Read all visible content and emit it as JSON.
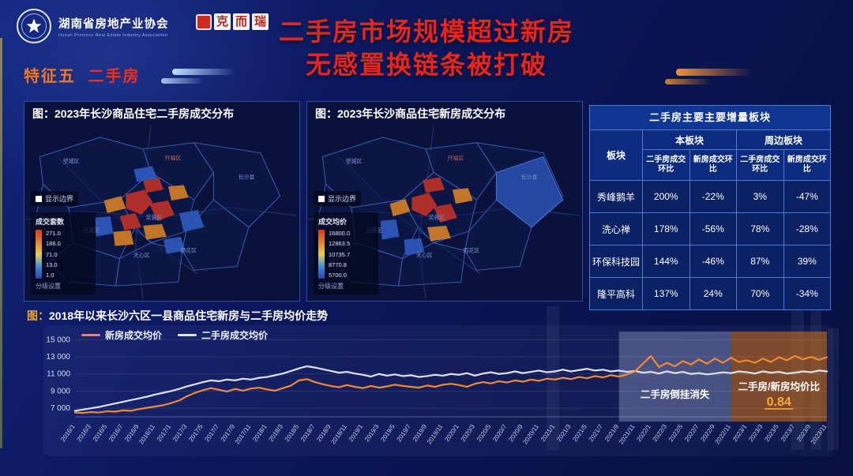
{
  "header": {
    "org_name": "湖南省房地产业协会",
    "org_name_en": "Hunan Province Real Estate Industry Association",
    "cric_chars": [
      "克",
      "而",
      "瑞"
    ],
    "title_line1": "二手房市场规模超过新房",
    "title_line2": "无感置换链条被打破",
    "section_tag_feature": "特征五",
    "section_tag_topic": "二手房"
  },
  "colors": {
    "title_red": "#e8251c",
    "tag_orange": "#f07820",
    "accent_orange": "#f28a33",
    "table_border": "#4f7ad0",
    "ratio_value": "#ffa83a"
  },
  "maps": {
    "left": {
      "title": "图：2023年长沙商品住宅二手房成交分布",
      "layer_toggle": "显示边界",
      "legend": {
        "title": "成交套数",
        "values": [
          "271.0",
          "186.0",
          "71.0",
          "13.0",
          "1.0"
        ],
        "footer": "分级设置"
      }
    },
    "right": {
      "title": "图：2023年长沙商品住宅新房成交分布",
      "layer_toggle": "显示边界",
      "legend": {
        "title": "成交均价",
        "values": [
          "16800.0",
          "12863.5",
          "10735.7",
          "8770.8",
          "5700.0"
        ],
        "footer": "分级设置"
      }
    },
    "place_labels": [
      "望城区",
      "开福区",
      "长沙县",
      "岳麓区",
      "芙蓉区",
      "天心区",
      "雨花区"
    ]
  },
  "table": {
    "title": "二手房主要主要增量板块",
    "col_group_headers": [
      "板块",
      "本板块",
      "周边板块"
    ],
    "sub_headers": [
      "二手房成交环比",
      "新房成交环比",
      "二手房成交环比",
      "新房成交环比"
    ],
    "rows": [
      {
        "name": "秀峰鹅羊",
        "values": [
          "200%",
          "-22%",
          "3%",
          "-47%"
        ]
      },
      {
        "name": "洗心禅",
        "values": [
          "178%",
          "-56%",
          "78%",
          "-28%"
        ]
      },
      {
        "name": "环保科技园",
        "values": [
          "144%",
          "-46%",
          "87%",
          "39%"
        ]
      },
      {
        "name": "隆平高科",
        "values": [
          "137%",
          "24%",
          "70%",
          "-34%"
        ]
      }
    ]
  },
  "chart_data": {
    "type": "line",
    "title_prefix": "图：",
    "title_main": "2018年以来长沙六区一县商品住宅新房与二手房均价走势",
    "ylim": [
      6000,
      15400
    ],
    "yticks": [
      7000,
      9000,
      11000,
      13000,
      15000
    ],
    "legend_position": "top-left",
    "x": [
      "2016/1",
      "2016/2",
      "2016/3",
      "2016/4",
      "2016/5",
      "2016/6",
      "2016/7",
      "2016/8",
      "2016/9",
      "2016/10",
      "2016/11",
      "2016/12",
      "2017/1",
      "2017/2",
      "2017/3",
      "2017/4",
      "2017/5",
      "2017/6",
      "2017/7",
      "2017/8",
      "2017/9",
      "2017/10",
      "2017/11",
      "2017/12",
      "2018/1",
      "2018/2",
      "2018/3",
      "2018/4",
      "2018/5",
      "2018/6",
      "2018/7",
      "2018/8",
      "2018/9",
      "2018/10",
      "2018/11",
      "2018/12",
      "2019/1",
      "2019/2",
      "2019/3",
      "2019/4",
      "2019/5",
      "2019/6",
      "2019/7",
      "2019/8",
      "2019/9",
      "2019/10",
      "2019/11",
      "2019/12",
      "2020/1",
      "2020/2",
      "2020/3",
      "2020/4",
      "2020/5",
      "2020/6",
      "2020/7",
      "2020/8",
      "2020/9",
      "2020/10",
      "2020/11",
      "2020/12",
      "2021/1",
      "2021/2",
      "2021/3",
      "2021/4",
      "2021/5",
      "2021/6",
      "2021/7",
      "2021/8",
      "2021/9",
      "2021/10",
      "2021/11",
      "2021/12",
      "2022/1",
      "2022/2",
      "2022/3",
      "2022/4",
      "2022/5",
      "2022/6",
      "2022/7",
      "2022/8",
      "2022/9",
      "2022/10",
      "2022/11",
      "2022/12",
      "2023/1",
      "2023/2",
      "2023/3",
      "2023/4",
      "2023/5",
      "2023/6",
      "2023/7",
      "2023/8",
      "2023/9",
      "2023/10",
      "2023/11"
    ],
    "series": [
      {
        "name": "新房成交均价",
        "color": "#f28a33",
        "values": [
          6500,
          6450,
          6550,
          6500,
          6650,
          6600,
          6750,
          6700,
          6900,
          7050,
          7200,
          7350,
          7600,
          7900,
          8400,
          8800,
          9100,
          9350,
          9150,
          8950,
          9250,
          9050,
          9300,
          9400,
          9200,
          9050,
          9350,
          9650,
          10250,
          10400,
          10050,
          9800,
          9600,
          9450,
          9700,
          9500,
          9350,
          9600,
          9400,
          9550,
          9750,
          9600,
          9500,
          9400,
          9650,
          9500,
          9750,
          9850,
          9700,
          9500,
          9850,
          10050,
          9900,
          10150,
          10000,
          10250,
          10100,
          10350,
          10200,
          10450,
          10350,
          10550,
          10400,
          10650,
          10500,
          10750,
          10600,
          10850,
          10700,
          10950,
          11300,
          12200,
          13100,
          11800,
          12300,
          11900,
          12500,
          12100,
          12700,
          12200,
          12800,
          12300,
          12900,
          12400,
          12600,
          12300,
          12800,
          12400,
          12950,
          12600,
          13100,
          12700,
          13000,
          12650,
          12950
        ]
      },
      {
        "name": "二手房成交均价",
        "color": "#dfe2ee",
        "values": [
          6700,
          6850,
          7000,
          7150,
          7350,
          7550,
          7750,
          7950,
          8150,
          8350,
          8600,
          8800,
          9000,
          9250,
          9550,
          9800,
          10050,
          10250,
          10150,
          10350,
          10250,
          10450,
          10350,
          10550,
          10650,
          10850,
          11050,
          11350,
          11650,
          11900,
          11750,
          11550,
          11350,
          11150,
          11250,
          11050,
          10900,
          10700,
          11000,
          10800,
          10950,
          10750,
          10850,
          10650,
          10750,
          10900,
          10800,
          11000,
          10900,
          11100,
          10800,
          11050,
          11200,
          11000,
          11100,
          11300,
          11100,
          11250,
          11400,
          11200,
          11300,
          11500,
          11300,
          11450,
          11600,
          11400,
          11500,
          11300,
          11400,
          11250,
          11350,
          11150,
          11250,
          11050,
          11300,
          11100,
          11250,
          11000,
          11100,
          10950,
          11050,
          11200,
          11100,
          11300,
          11200,
          11050,
          11300,
          11150,
          11250,
          11050,
          11150,
          11300,
          11200,
          11400,
          11300
        ]
      }
    ],
    "annotations": [
      {
        "label": "二手房倒挂消失",
        "range": [
          "2021/9",
          "2022/11"
        ],
        "color": "rgba(186,200,232,0.32)"
      },
      {
        "label": "二手房/新房均价比",
        "value": "0.84",
        "range": [
          "2022/11",
          "2023/11"
        ],
        "color": "rgba(198,106,22,0.60)"
      }
    ]
  }
}
